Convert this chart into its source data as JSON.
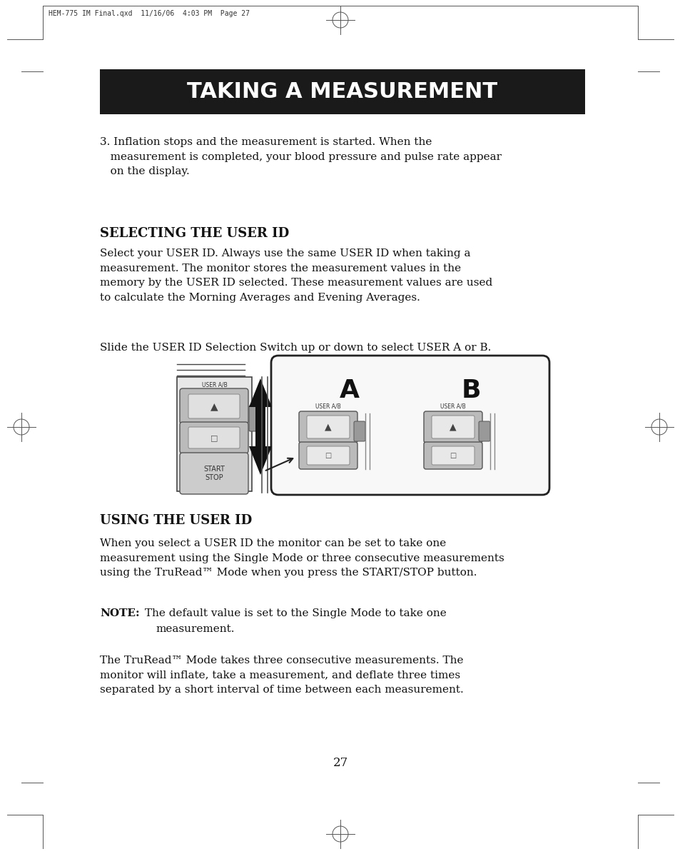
{
  "bg_color": "#ffffff",
  "page_width": 9.54,
  "page_height": 11.96,
  "header_text": "HEM-775 IM Final.qxd  11/16/06  4:03 PM  Page 27",
  "title_banner_text": "TAKING A MEASUREMENT",
  "title_banner_bg": "#1a1a1a",
  "title_banner_fg": "#ffffff",
  "section1_heading": "SELECTING THE USER ID",
  "section1_para1": "Select your USER ID. Always use the same USER ID when taking a\nmeasurement. The monitor stores the measurement values in the\nmemory by the USER ID selected. These measurement values are used\nto calculate the Morning Averages and Evening Averages.",
  "section1_para2": "Slide the USER ID Selection Switch up or down to select USER A or B.",
  "section2_heading": "USING THE USER ID",
  "section2_para1": "When you select a USER ID the monitor can be set to take one\nmeasurement using the Single Mode or three consecutive measurements\nusing the TruRead™ Mode when you press the START/STOP button.",
  "note_bold": "NOTE:",
  "note_text": " The default value is set to the Single Mode to take one\n        measurement.",
  "section2_para2": "The TruRead™ Mode takes three consecutive measurements. The\nmonitor will inflate, take a measurement, and deflate three times\nseparated by a short interval of time between each measurement.",
  "intro_para": "3. Inflation stops and the measurement is started. When the\n   measurement is completed, your blood pressure and pulse rate appear\n   on the display.",
  "page_number": "27"
}
